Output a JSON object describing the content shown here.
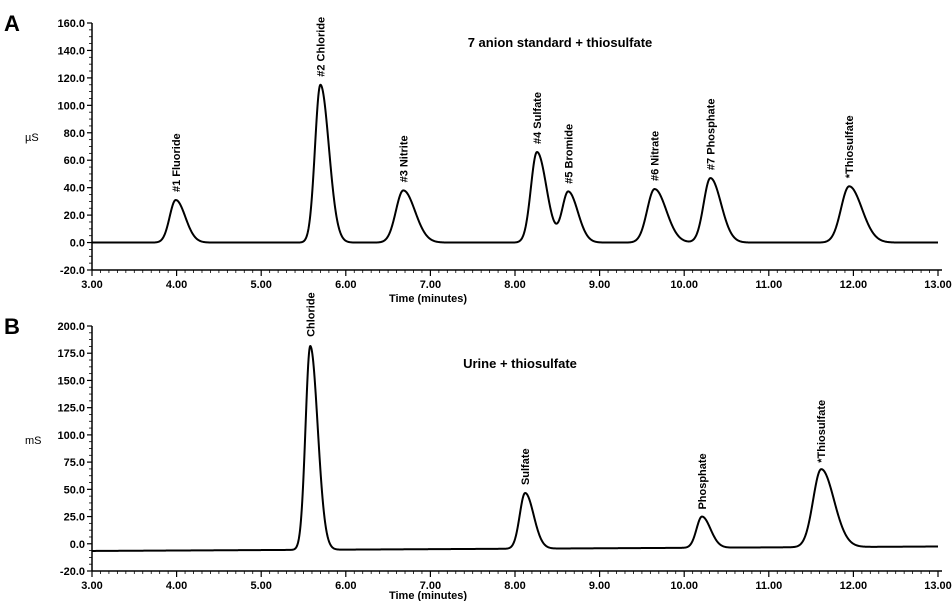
{
  "chart_data": [
    {
      "type": "line",
      "panel": "A",
      "title": "7 anion standard + thiosulfate",
      "xlabel": "Time (minutes)",
      "ylabel": "µS",
      "xlim": [
        3.0,
        13.0
      ],
      "ylim": [
        -20.0,
        160.0
      ],
      "xticks": [
        "3.00",
        "4.00",
        "5.00",
        "6.00",
        "7.00",
        "8.00",
        "9.00",
        "10.00",
        "11.00",
        "12.00",
        "13.00"
      ],
      "yticks": [
        "-20.0",
        "0.0",
        "20.0",
        "40.0",
        "60.0",
        "80.0",
        "100.0",
        "120.0",
        "140.0",
        "160.0"
      ],
      "baseline": 0.0,
      "grid": false,
      "peaks": [
        {
          "label": "#1 Fluoride",
          "x": 3.99,
          "y": 31,
          "width": 0.09
        },
        {
          "label": "#2 Chloride",
          "x": 5.7,
          "y": 115,
          "width": 0.08
        },
        {
          "label": "#3 Nitrite",
          "x": 6.68,
          "y": 38,
          "width": 0.11
        },
        {
          "label": "#4 Sulfate",
          "x": 8.26,
          "y": 66,
          "width": 0.09
        },
        {
          "label": "#5 Bromide",
          "x": 8.63,
          "y": 37,
          "width": 0.09
        },
        {
          "label": "#6 Nitrate",
          "x": 9.65,
          "y": 39,
          "width": 0.11
        },
        {
          "label": "#7 Phosphate",
          "x": 10.31,
          "y": 47,
          "width": 0.1
        },
        {
          "label": "*Thiosulfate",
          "x": 11.95,
          "y": 41,
          "width": 0.12
        }
      ]
    },
    {
      "type": "line",
      "panel": "B",
      "title": "Urine + thiosulfate",
      "xlabel": "Time (minutes)",
      "ylabel": "mS",
      "xlim": [
        3.0,
        13.0
      ],
      "ylim": [
        -20.0,
        200.0
      ],
      "xticks": [
        "3.00",
        "4.00",
        "5.00",
        "6.00",
        "7.00",
        "8.00",
        "9.00",
        "10.00",
        "11.00",
        "12.00",
        "13.00"
      ],
      "yticks": [
        "-20.0",
        "0.0",
        "25.0",
        "50.0",
        "75.0",
        "100.0",
        "125.0",
        "150.0",
        "175.0",
        "200.0"
      ],
      "baseline_start": -2.0,
      "baseline_end": 2.0,
      "grid": false,
      "peaks": [
        {
          "label": "Chloride",
          "x": 5.58,
          "y": 183,
          "width": 0.07
        },
        {
          "label": "Sulfate",
          "x": 8.12,
          "y": 50,
          "width": 0.08
        },
        {
          "label": "Phosphate",
          "x": 10.21,
          "y": 28,
          "width": 0.08
        },
        {
          "label": "*Thiosulfate",
          "x": 11.62,
          "y": 70,
          "width": 0.12
        }
      ]
    }
  ]
}
